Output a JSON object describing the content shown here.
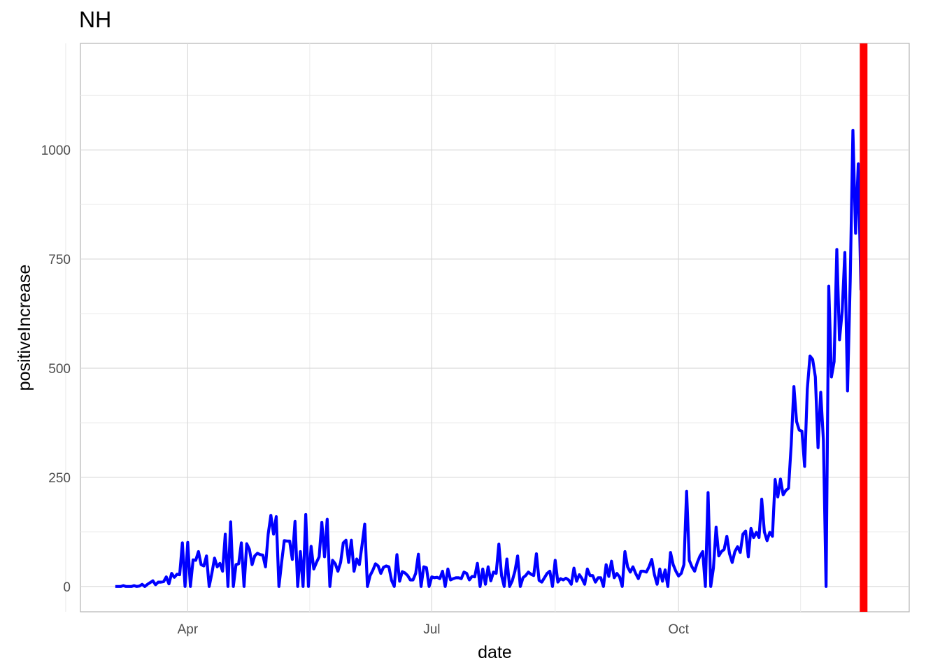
{
  "chart_data": {
    "type": "line",
    "title": "NH",
    "xlabel": "date",
    "ylabel": "positiveIncrease",
    "x_ticks": [
      "Apr",
      "Jul",
      "Oct"
    ],
    "y_ticks": [
      0,
      250,
      500,
      750,
      1000
    ],
    "ylim": [
      -58,
      1244
    ],
    "xlim": [
      "2020-02-21",
      "2020-12-26"
    ],
    "grid": true,
    "legend": "none",
    "series": [
      {
        "color": "#0000ff",
        "start_date": "2020-03-05",
        "values": [
          0,
          0,
          0,
          2,
          0,
          0,
          0,
          2,
          0,
          1,
          5,
          0,
          5,
          9,
          13,
          4,
          10,
          10,
          11,
          22,
          6,
          30,
          21,
          28,
          27,
          100,
          0,
          101,
          0,
          61,
          60,
          80,
          50,
          47,
          70,
          0,
          30,
          65,
          45,
          53,
          35,
          120,
          0,
          148,
          0,
          50,
          52,
          100,
          0,
          98,
          85,
          50,
          70,
          76,
          73,
          72,
          45,
          120,
          163,
          120,
          160,
          0,
          55,
          105,
          104,
          104,
          62,
          149,
          0,
          80,
          0,
          165,
          0,
          92,
          40,
          55,
          68,
          147,
          68,
          154,
          0,
          60,
          52,
          35,
          55,
          100,
          106,
          55,
          106,
          35,
          63,
          50,
          95,
          143,
          0,
          25,
          37,
          52,
          47,
          30,
          44,
          47,
          45,
          14,
          0,
          73,
          12,
          34,
          31,
          25,
          15,
          15,
          30,
          74,
          0,
          45,
          43,
          0,
          22,
          20,
          21,
          18,
          35,
          0,
          40,
          15,
          18,
          20,
          20,
          18,
          33,
          30,
          15,
          23,
          22,
          53,
          0,
          40,
          5,
          45,
          13,
          33,
          30,
          97,
          25,
          0,
          63,
          0,
          13,
          35,
          70,
          0,
          20,
          25,
          33,
          28,
          25,
          75,
          14,
          10,
          20,
          30,
          35,
          0,
          60,
          10,
          18,
          15,
          19,
          15,
          5,
          42,
          12,
          27,
          18,
          5,
          40,
          25,
          25,
          10,
          20,
          20,
          0,
          50,
          23,
          58,
          20,
          30,
          22,
          0,
          80,
          45,
          33,
          45,
          30,
          18,
          35,
          35,
          33,
          45,
          62,
          27,
          5,
          40,
          12,
          38,
          0,
          78,
          50,
          35,
          24,
          30,
          50,
          218,
          60,
          45,
          35,
          55,
          70,
          80,
          0,
          215,
          0,
          42,
          136,
          70,
          80,
          85,
          115,
          75,
          55,
          80,
          91,
          78,
          120,
          127,
          68,
          133,
          112,
          124,
          112,
          200,
          125,
          105,
          124,
          115,
          245,
          205,
          246,
          210,
          220,
          225,
          325,
          458,
          378,
          358,
          356,
          275,
          452,
          528,
          520,
          480,
          318,
          445,
          335,
          0,
          688,
          480,
          515,
          772,
          565,
          630,
          765,
          448,
          700,
          1045,
          809,
          968,
          680,
          1175
        ]
      }
    ],
    "vline": {
      "date": "2020-12-09",
      "color": "#ff0000"
    }
  }
}
